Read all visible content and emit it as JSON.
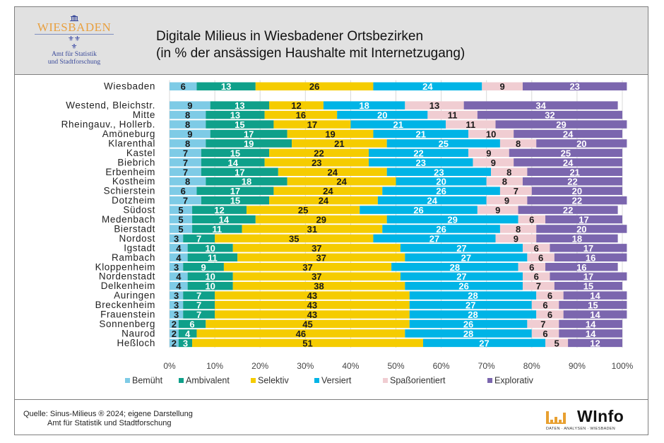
{
  "header": {
    "logo_name": "WIESBADEN",
    "logo_sub1": "Amt für Statistik",
    "logo_sub2": "und Stadtforschung",
    "title_line1": "Digitale Milieus in Wiesbadener Ortsbezirken",
    "title_line2": "(in % der ansässigen Haushalte mit Internetzugang)"
  },
  "footer": {
    "source_line1": "Quelle: Sinus-Milieus ® 2024; eigene Darstellung",
    "source_line2": "Amt für Statistik und Stadtforschung",
    "brand_name": "WInfo",
    "brand_tagline": "DATEN · ANALYSEN · WIESBADEN",
    "brand_bar_color": "#e8a030"
  },
  "chart_data": {
    "type": "bar",
    "orientation": "horizontal",
    "stacked": true,
    "title": "Digitale Milieus in Wiesbadener Ortsbezirken (in % der ansässigen Haushalte mit Internetzugang)",
    "xlabel": "",
    "ylabel": "",
    "xlim": [
      0,
      100
    ],
    "x_ticks": [
      "0%",
      "10%",
      "20%",
      "30%",
      "40%",
      "50%",
      "60%",
      "70%",
      "80%",
      "90%",
      "100%"
    ],
    "grid": true,
    "legend_position": "bottom",
    "categories": [
      "Wiesbaden",
      "",
      "Westend, Bleichstr.",
      "Mitte",
      "Rheingauv., Hollerb.",
      "Amöneburg",
      "Klarenthal",
      "Kastel",
      "Biebrich",
      "Erbenheim",
      "Kostheim",
      "Schierstein",
      "Dotzheim",
      "Südost",
      "Medenbach",
      "Bierstadt",
      "Nordost",
      "Igstadt",
      "Rambach",
      "Kloppenheim",
      "Nordenstadt",
      "Delkenheim",
      "Auringen",
      "Breckenheim",
      "Frauenstein",
      "Sonnenberg",
      "Naurod",
      "Heßloch"
    ],
    "series": [
      {
        "name": "Bemüht",
        "color": "#7ecbe6",
        "label_color": "#1a1a1a",
        "values": [
          6,
          null,
          9,
          8,
          8,
          9,
          8,
          7,
          7,
          7,
          8,
          6,
          7,
          5,
          5,
          5,
          3,
          4,
          4,
          3,
          4,
          4,
          3,
          3,
          3,
          2,
          2,
          2
        ]
      },
      {
        "name": "Ambivalent",
        "color": "#0fa08a",
        "label_color": "#ffffff",
        "values": [
          13,
          null,
          13,
          13,
          15,
          17,
          19,
          15,
          14,
          17,
          18,
          17,
          15,
          12,
          14,
          11,
          7,
          10,
          11,
          9,
          10,
          10,
          7,
          7,
          7,
          6,
          4,
          3
        ]
      },
      {
        "name": "Selektiv",
        "color": "#f5cc00",
        "label_color": "#1a1a1a",
        "values": [
          26,
          null,
          12,
          16,
          17,
          19,
          21,
          22,
          23,
          24,
          24,
          24,
          24,
          25,
          29,
          31,
          35,
          37,
          37,
          37,
          37,
          38,
          43,
          43,
          43,
          45,
          46,
          51
        ]
      },
      {
        "name": "Versiert",
        "color": "#00b4e6",
        "label_color": "#ffffff",
        "values": [
          24,
          null,
          18,
          20,
          21,
          21,
          25,
          22,
          23,
          23,
          20,
          26,
          24,
          26,
          29,
          26,
          27,
          27,
          27,
          28,
          27,
          26,
          28,
          27,
          28,
          26,
          28,
          27
        ]
      },
      {
        "name": "Spaßorientiert",
        "color": "#f0cdd2",
        "label_color": "#1a1a1a",
        "values": [
          9,
          null,
          13,
          11,
          11,
          10,
          8,
          9,
          9,
          8,
          8,
          7,
          9,
          9,
          6,
          8,
          9,
          6,
          6,
          6,
          6,
          7,
          6,
          6,
          6,
          7,
          6,
          5
        ]
      },
      {
        "name": "Explorativ",
        "color": "#7b66ae",
        "label_color": "#ffffff",
        "values": [
          23,
          null,
          34,
          32,
          29,
          24,
          20,
          25,
          24,
          21,
          22,
          20,
          22,
          22,
          17,
          20,
          18,
          17,
          16,
          16,
          17,
          15,
          14,
          15,
          14,
          14,
          14,
          12
        ]
      }
    ]
  }
}
